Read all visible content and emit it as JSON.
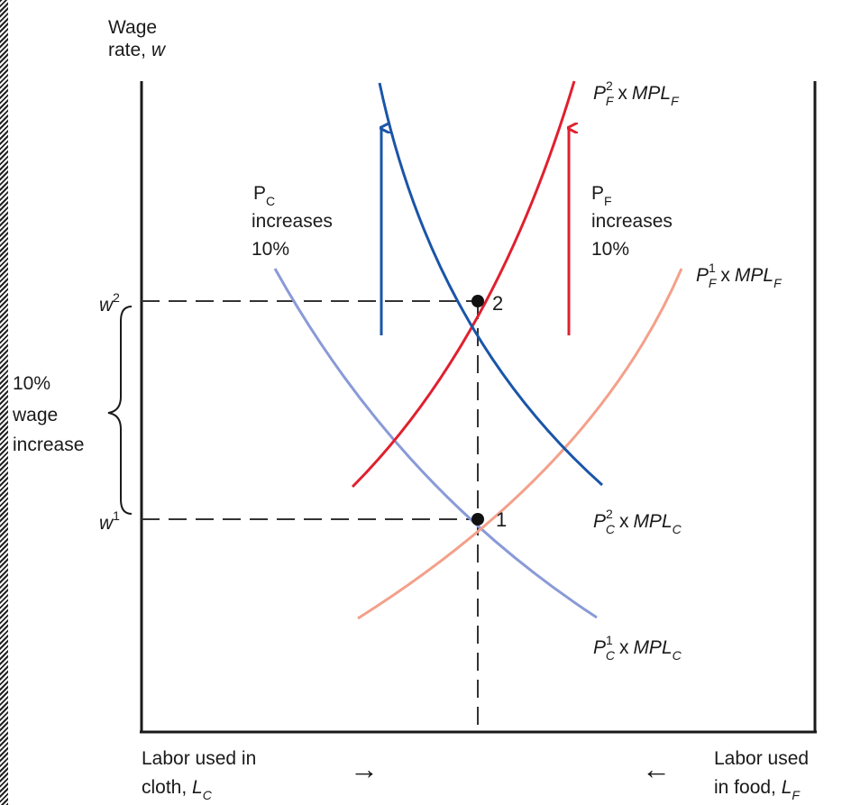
{
  "y_axis_label": {
    "line1": "Wage",
    "line2_text": "rate, ",
    "line2_var": "w"
  },
  "x_axis_left": {
    "line1": "Labor used in",
    "line2_text": "cloth, ",
    "line2_var": "L",
    "line2_sub": "C",
    "arrow": "→"
  },
  "x_axis_right": {
    "line1": "Labor used",
    "line2_text": "in food, ",
    "line2_var": "L",
    "line2_sub": "F",
    "arrow": "←"
  },
  "wage_levels": {
    "w1": {
      "var": "w",
      "sup": "1"
    },
    "w2": {
      "var": "w",
      "sup": "2"
    }
  },
  "wage_increase_note": [
    "10%",
    "wage",
    "increase"
  ],
  "points": {
    "p1": "1",
    "p2": "2"
  },
  "curves": {
    "pf2": {
      "P": "P",
      "sub": "F",
      "sup": "2",
      "times": "x",
      "MPL": "MPL",
      "mpl_sub": "F",
      "color": "#e0202e"
    },
    "pf1": {
      "P": "P",
      "sub": "F",
      "sup": "1",
      "times": "x",
      "MPL": "MPL",
      "mpl_sub": "F",
      "color": "#f4a08a"
    },
    "pc2": {
      "P": "P",
      "sub": "C",
      "sup": "2",
      "times": "x",
      "MPL": "MPL",
      "mpl_sub": "C",
      "color": "#1a55a8"
    },
    "pc1": {
      "P": "P",
      "sub": "C",
      "sup": "1",
      "times": "x",
      "MPL": "MPL",
      "mpl_sub": "C",
      "color": "#8a9ad8"
    }
  },
  "price_notes": {
    "pc": {
      "P": "P",
      "sub": "C",
      "line2": "increases",
      "line3": "10%"
    },
    "pf": {
      "P": "P",
      "sub": "F",
      "line2": "increases",
      "line3": "10%"
    }
  },
  "colors": {
    "axis": "#1a1a1a",
    "dash": "#333333",
    "blue_arrow": "#1a55a8",
    "red_arrow": "#e0202e"
  }
}
